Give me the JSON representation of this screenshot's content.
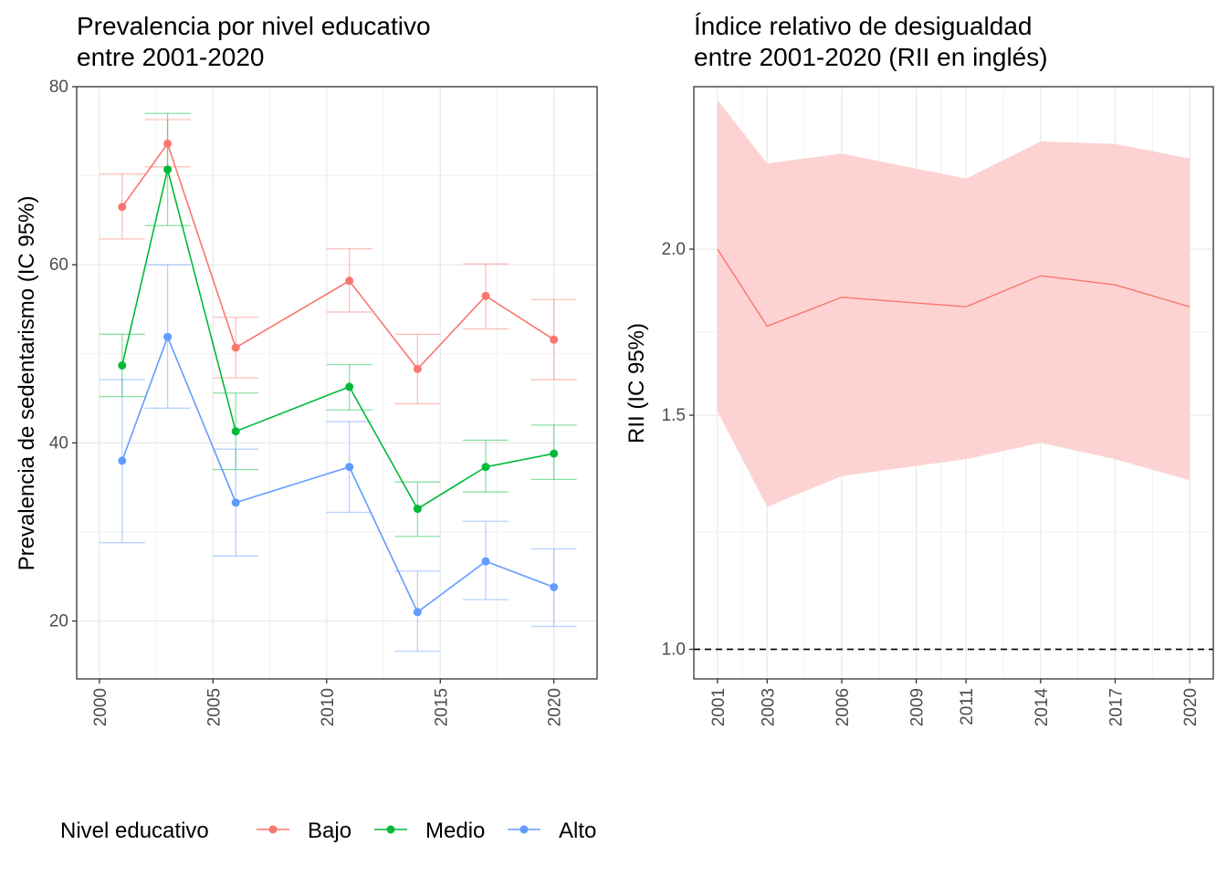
{
  "chart_data": [
    {
      "type": "line",
      "title_lines": [
        "Prevalencia por nivel educativo",
        "entre 2001-2020"
      ],
      "xlabel": "",
      "ylabel": "Prevalencia de sedentarismo (IC 95%)",
      "xlim": [
        1999,
        2021.9
      ],
      "ylim": [
        13.5,
        80
      ],
      "x_ticks": [
        2000,
        2005,
        2010,
        2015,
        2020
      ],
      "y_ticks": [
        20,
        40,
        60,
        80
      ],
      "grid": true,
      "legend_position": "bottom",
      "legend_title": "Nivel educativo",
      "series": [
        {
          "name": "Bajo",
          "color": "#F8766D",
          "x": [
            2001,
            2003,
            2006,
            2011,
            2014,
            2017,
            2020
          ],
          "values": [
            66.5,
            73.6,
            50.7,
            58.2,
            48.3,
            56.5,
            51.6
          ],
          "lower": [
            62.9,
            71.0,
            47.3,
            54.7,
            44.4,
            52.8,
            47.1
          ],
          "upper": [
            70.2,
            76.3,
            54.1,
            61.8,
            52.2,
            60.1,
            56.1
          ]
        },
        {
          "name": "Medio",
          "color": "#00BA38",
          "x": [
            2001,
            2003,
            2006,
            2011,
            2014,
            2017,
            2020
          ],
          "values": [
            48.7,
            70.7,
            41.3,
            46.3,
            32.6,
            37.3,
            38.8
          ],
          "lower": [
            45.2,
            64.4,
            37.0,
            43.7,
            29.5,
            34.5,
            35.9
          ],
          "upper": [
            52.2,
            77.0,
            45.6,
            48.8,
            35.6,
            40.3,
            42.0
          ]
        },
        {
          "name": "Alto",
          "color": "#619CFF",
          "x": [
            2001,
            2003,
            2006,
            2011,
            2014,
            2017,
            2020
          ],
          "values": [
            38.0,
            51.9,
            33.3,
            37.3,
            21.0,
            26.7,
            23.8
          ],
          "lower": [
            28.8,
            43.9,
            27.3,
            32.2,
            16.6,
            22.4,
            19.4
          ],
          "upper": [
            47.1,
            60.0,
            39.3,
            42.4,
            25.6,
            31.2,
            28.1
          ]
        }
      ]
    },
    {
      "type": "area",
      "title_lines": [
        "Índice relativo de desigualdad",
        "entre 2001-2020 (RII en inglés)"
      ],
      "xlabel": "",
      "ylabel": "RII (IC 95%)",
      "y_scale": "log",
      "xlim": [
        2000.05,
        2020.95
      ],
      "ylim": [
        0.95,
        2.65
      ],
      "x_ticks": [
        2001,
        2003,
        2006,
        2009,
        2011,
        2014,
        2017,
        2020
      ],
      "y_ticks": [
        1.0,
        1.5,
        2.0
      ],
      "grid": true,
      "reference_line": 1.0,
      "series": [
        {
          "name": "",
          "color": "#F8766D",
          "fill": "#FCD3D2",
          "x": [
            2001,
            2003,
            2006,
            2011,
            2014,
            2017,
            2020
          ],
          "values": [
            2.0,
            1.75,
            1.84,
            1.81,
            1.91,
            1.88,
            1.81
          ],
          "lower": [
            1.51,
            1.28,
            1.35,
            1.39,
            1.43,
            1.39,
            1.34
          ],
          "upper": [
            2.59,
            2.32,
            2.36,
            2.26,
            2.41,
            2.4,
            2.34
          ]
        }
      ]
    }
  ]
}
